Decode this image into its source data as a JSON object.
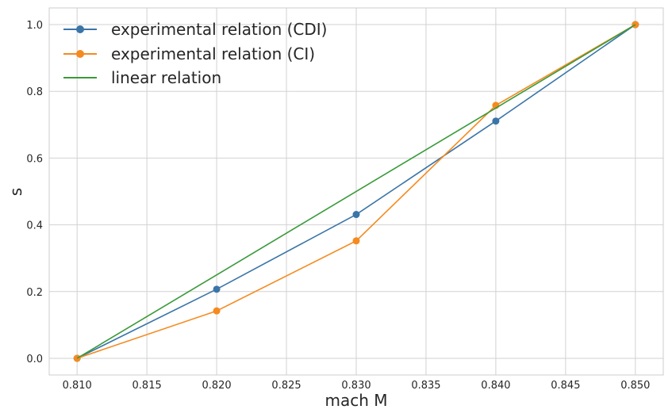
{
  "chart_data": {
    "type": "line",
    "title": "",
    "xlabel": "mach M",
    "ylabel": "s",
    "xlim": [
      0.808,
      0.852
    ],
    "ylim": [
      -0.05,
      1.05
    ],
    "grid": true,
    "legend_position": "top-left",
    "x_ticks": [
      0.81,
      0.815,
      0.82,
      0.825,
      0.83,
      0.835,
      0.84,
      0.845,
      0.85
    ],
    "x_tick_labels": [
      "0.810",
      "0.815",
      "0.820",
      "0.825",
      "0.830",
      "0.835",
      "0.840",
      "0.845",
      "0.850"
    ],
    "y_ticks": [
      0.0,
      0.2,
      0.4,
      0.6,
      0.8,
      1.0
    ],
    "y_tick_labels": [
      "0.0",
      "0.2",
      "0.4",
      "0.6",
      "0.8",
      "1.0"
    ],
    "series": [
      {
        "name": "experimental relation (CDI)",
        "color": "#3a75a8",
        "marker": "circle",
        "x": [
          0.81,
          0.82,
          0.83,
          0.84,
          0.85
        ],
        "values": [
          0.0,
          0.207,
          0.431,
          0.711,
          1.0
        ]
      },
      {
        "name": "experimental relation (CI)",
        "color": "#f58a1f",
        "marker": "circle",
        "x": [
          0.81,
          0.82,
          0.83,
          0.84,
          0.85
        ],
        "values": [
          0.0,
          0.142,
          0.352,
          0.758,
          1.0
        ]
      },
      {
        "name": "linear relation",
        "color": "#3a9a3a",
        "marker": "none",
        "x": [
          0.81,
          0.85
        ],
        "values": [
          0.0,
          1.0
        ]
      }
    ]
  }
}
